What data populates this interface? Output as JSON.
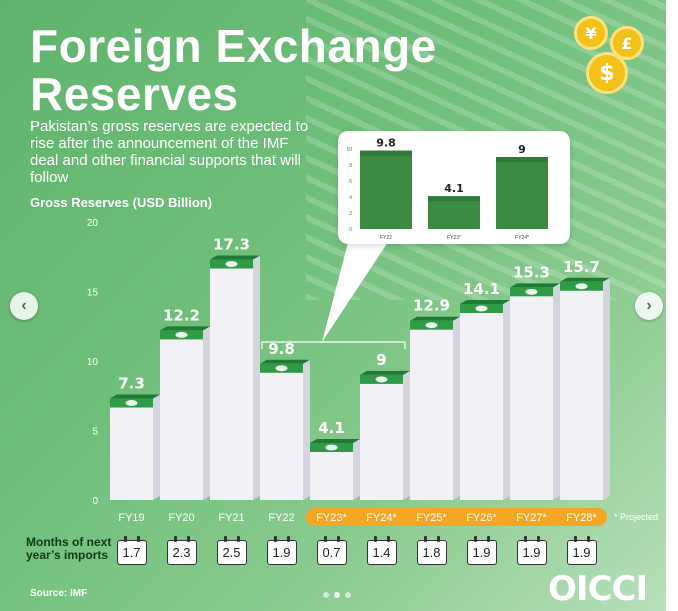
{
  "title_line1": "Foreign Exchange",
  "title_line2": "Reserves",
  "subtitle": "Pakistan’s gross reserves are expected to rise after the announcement of the IMF deal and other financial supports that will follow",
  "coins": [
    "¥",
    "£",
    "$"
  ],
  "colors": {
    "bar_front": "#f2f2f6",
    "bar_side": "#d4d4de",
    "cap": "#2f9b47",
    "highlight": "#f5a623",
    "inset_bar": "#3c8a42"
  },
  "chart_data": {
    "type": "bar",
    "ylabel": "Gross Reserves (USD Billion)",
    "ylim": [
      0,
      20
    ],
    "yticks": [
      "0",
      "5",
      "10",
      "15",
      "20"
    ],
    "categories": [
      "FY19",
      "FY20",
      "FY21",
      "FY22",
      "FY23*",
      "FY24*",
      "FY25*",
      "FY26*",
      "FY27*",
      "FY28*"
    ],
    "values": [
      7.3,
      12.2,
      17.3,
      9.8,
      4.1,
      9,
      12.9,
      14.1,
      15.3,
      15.7
    ],
    "value_labels": [
      "7.3",
      "12.2",
      "17.3",
      "9.8",
      "4.1",
      "9",
      "12.9",
      "14.1",
      "15.3",
      "15.7"
    ],
    "highlighted": [
      false,
      false,
      false,
      false,
      true,
      true,
      true,
      true,
      true,
      true
    ],
    "inset": {
      "categories": [
        "FY22",
        "FY23*",
        "FY24*"
      ],
      "values": [
        9.8,
        4.1,
        9
      ],
      "value_labels": [
        "9.8",
        "4.1",
        "9"
      ],
      "yticks": [
        "0",
        "2",
        "4",
        "6",
        "8",
        "10"
      ],
      "ylim": [
        0,
        10
      ]
    }
  },
  "projected_note": "* Projected",
  "months_label": "Months of next year’s imports",
  "months_values": [
    "1.7",
    "2.3",
    "2.5",
    "1.9",
    "0.7",
    "1.4",
    "1.8",
    "1.9",
    "1.9",
    "1.9"
  ],
  "source": "Source: IMF",
  "logo": "OICCI",
  "nav": {
    "prev": "‹",
    "next": "›"
  }
}
